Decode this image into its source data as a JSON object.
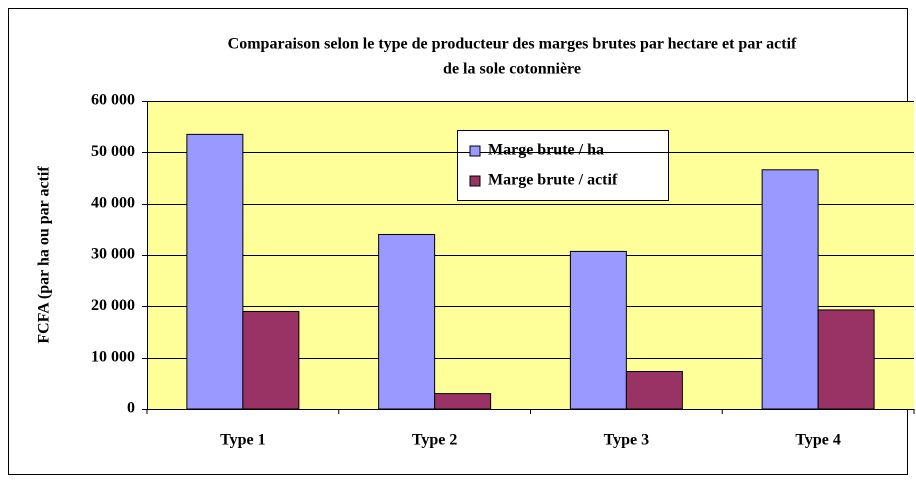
{
  "chart_data": {
    "type": "bar",
    "title": "Comparaison selon le type de producteur des marges brutes par hectare et par actif",
    "subtitle": "de la sole cotonnière",
    "y_label": "FCFA (par ha ou par actif",
    "categories": [
      "Type 1",
      "Type 2",
      "Type 3",
      "Type 4"
    ],
    "series": [
      {
        "name": "Marge brute / ha",
        "color": "#9999ff",
        "values": [
          53500,
          34000,
          30700,
          46600
        ]
      },
      {
        "name": "Marge brute / actif",
        "color": "#993366",
        "values": [
          19000,
          3000,
          7300,
          19300
        ]
      }
    ],
    "ylim": [
      0,
      60000
    ],
    "yticks": [
      0,
      {
        "value": 10000,
        "label": "10 000"
      },
      {
        "value": 20000,
        "label": "20 000"
      },
      {
        "value": 30000,
        "label": "30 000"
      },
      {
        "value": 40000,
        "label": "40 000"
      },
      {
        "value": 50000,
        "label": "50 000"
      },
      {
        "value": 60000,
        "label": "60 000"
      }
    ],
    "grid": true
  }
}
